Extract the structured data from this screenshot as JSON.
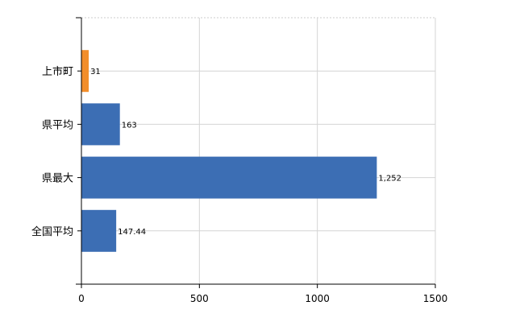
{
  "chart_data": {
    "type": "bar",
    "orientation": "horizontal",
    "categories": [
      "上市町",
      "県平均",
      "県最大",
      "全国平均"
    ],
    "values": [
      31,
      163,
      1252,
      147.44
    ],
    "data_labels": [
      "31",
      "163",
      "1,252",
      "147.44"
    ],
    "colors": [
      "#F28E2B",
      "#3C6EB4",
      "#3C6EB4",
      "#3C6EB4"
    ],
    "xlim": [
      0,
      1500
    ],
    "xticks": [
      "0",
      "500",
      "1000",
      "1500"
    ],
    "xtick_values": [
      0,
      500,
      1000,
      1500
    ],
    "grid": true,
    "title": "",
    "xlabel": "",
    "ylabel": ""
  }
}
